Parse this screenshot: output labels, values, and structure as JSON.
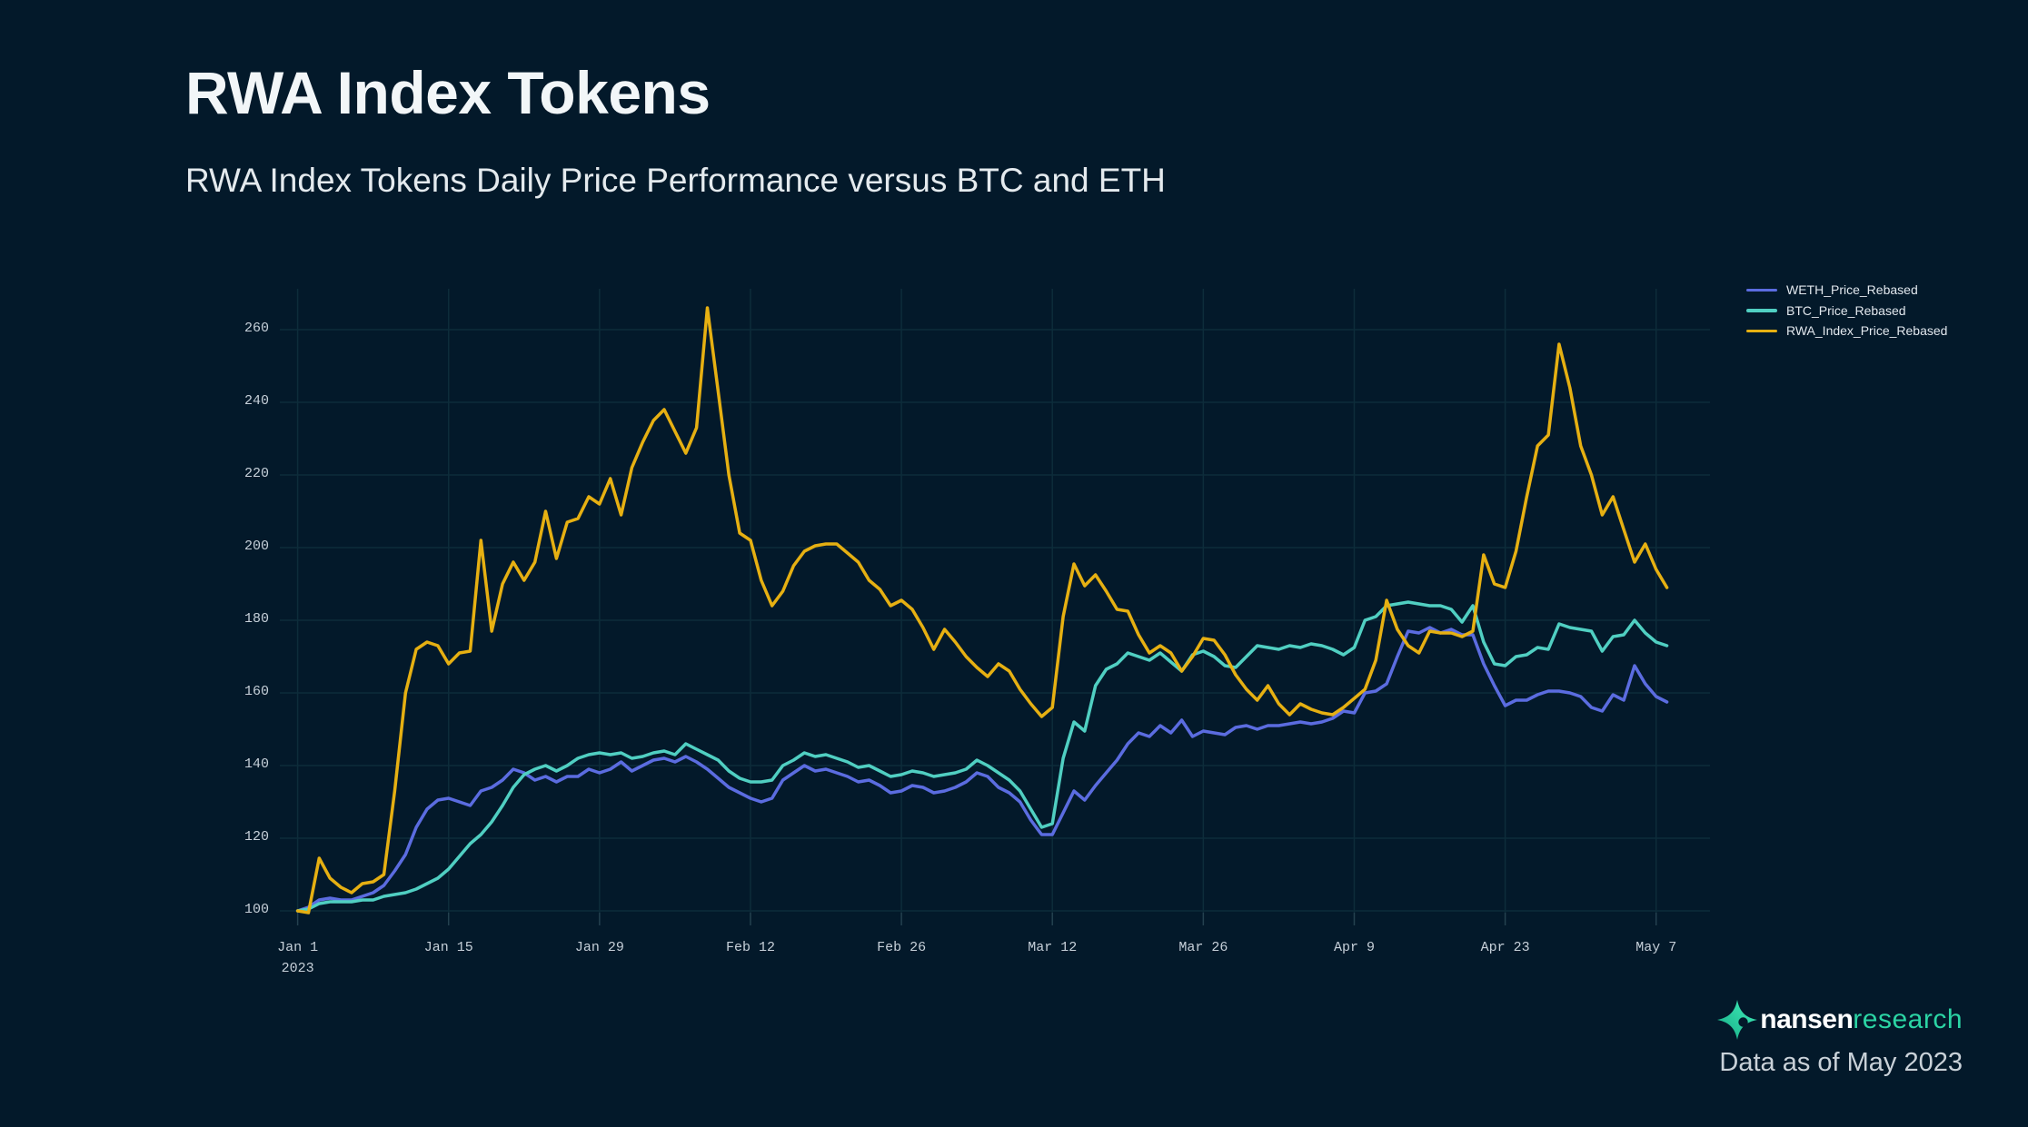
{
  "header": {
    "title": "RWA Index Tokens",
    "subtitle": "RWA Index Tokens Daily Price Performance versus BTC and ETH"
  },
  "legend": {
    "items": [
      {
        "label": "WETH_Price_Rebased",
        "color": "#5b6ce0"
      },
      {
        "label": "BTC_Price_Rebased",
        "color": "#50cfc2"
      },
      {
        "label": "RWA_Index_Price_Rebased",
        "color": "#e6b012"
      }
    ]
  },
  "footer": {
    "brand_bold": "nansen",
    "brand_light": "research",
    "brand_color": "#2bd4a4",
    "data_as_of": "Data as of May 2023"
  },
  "chart_data": {
    "type": "line",
    "title": "RWA Index Tokens",
    "subtitle": "RWA Index Tokens Daily Price Performance versus BTC and ETH",
    "xlabel": "",
    "ylabel": "",
    "start_date": "Jan 1 2023",
    "frequency": "daily",
    "num_points": 128,
    "ylim": [
      96,
      268
    ],
    "grid": true,
    "legend_position": "top-right",
    "y_ticks": [
      100,
      120,
      140,
      160,
      180,
      200,
      220,
      240,
      260
    ],
    "x_tick_days": [
      0,
      14,
      28,
      42,
      56,
      70,
      84,
      98,
      112,
      126
    ],
    "x_tick_labels": [
      "Jan 1\n2023",
      "Jan 15",
      "Jan 29",
      "Feb 12",
      "Feb 26",
      "Mar 12",
      "Mar 26",
      "Apr 9",
      "Apr 23",
      "May 7"
    ],
    "series": [
      {
        "name": "WETH_Price_Rebased",
        "color": "#5b6ce0",
        "values": [
          100,
          101,
          103,
          103.5,
          103,
          103,
          104,
          105,
          107,
          111,
          115.5,
          123,
          128,
          130.5,
          131,
          130,
          129,
          133,
          134,
          136,
          139,
          138,
          136,
          137,
          135.5,
          137,
          137,
          139,
          138,
          139,
          141,
          138.5,
          140,
          141.5,
          142,
          141,
          142.5,
          141,
          139,
          136.5,
          134,
          132.5,
          131,
          130,
          131,
          136,
          138,
          140,
          138.5,
          139,
          138,
          137,
          135.5,
          136,
          134.5,
          132.5,
          133,
          134.5,
          134,
          132.5,
          133,
          134,
          135.5,
          138,
          137,
          134,
          132.5,
          130,
          125,
          121,
          121,
          127,
          133,
          130.5,
          134.5,
          138,
          141.5,
          146,
          149,
          148,
          151,
          149,
          152.5,
          148,
          149.5,
          149,
          148.5,
          150.5,
          151,
          150,
          151,
          151,
          151.5,
          152,
          151.5,
          152,
          153,
          155,
          154.5,
          160,
          160.5,
          162.5,
          170,
          177,
          176.5,
          178,
          176.5,
          177.5,
          176,
          176,
          168,
          162,
          156.5,
          158,
          158,
          159.5,
          160.5,
          160.5,
          160,
          159,
          156,
          155,
          159.5,
          158,
          167.5,
          162.5,
          159,
          157.5
        ]
      },
      {
        "name": "BTC_Price_Rebased",
        "color": "#50cfc2",
        "values": [
          100,
          100.5,
          102,
          102.5,
          102.5,
          102.5,
          103,
          103,
          104,
          104.5,
          105,
          106,
          107.5,
          109,
          111.5,
          115,
          118.5,
          121,
          124.5,
          129,
          134,
          137.5,
          139,
          140,
          138.5,
          140,
          142,
          143,
          143.5,
          143,
          143.5,
          142,
          142.5,
          143.5,
          144,
          143,
          146,
          144.5,
          143,
          141.5,
          138.5,
          136.5,
          135.5,
          135.5,
          136,
          140,
          141.5,
          143.5,
          142.5,
          143,
          142,
          141,
          139.5,
          140,
          138.5,
          137,
          137.5,
          138.5,
          138,
          137,
          137.5,
          138,
          139,
          141.5,
          140,
          138,
          136,
          133,
          128,
          123,
          124,
          142,
          152,
          149.5,
          162,
          166.5,
          168,
          171,
          170,
          169,
          171,
          168.5,
          166,
          170.5,
          171.5,
          170,
          167.5,
          167,
          170,
          173,
          172.5,
          172,
          173,
          172.5,
          173.5,
          173,
          172,
          170.5,
          172.5,
          180,
          181,
          184,
          184.5,
          185,
          184.5,
          184,
          184,
          183,
          179.5,
          184,
          174,
          168,
          167.5,
          170,
          170.5,
          172.5,
          172,
          179,
          178,
          177.5,
          177,
          171.5,
          175.5,
          176,
          180,
          176.5,
          174,
          173
        ]
      },
      {
        "name": "RWA_Index_Price_Rebased",
        "color": "#e6b012",
        "values": [
          100,
          99.5,
          114.5,
          109,
          106.5,
          105,
          107.5,
          108,
          110,
          133,
          160,
          172,
          174,
          173,
          168,
          171,
          171.5,
          202,
          177,
          190,
          196,
          191,
          196,
          210,
          197,
          207,
          208,
          214,
          212,
          219,
          209,
          222,
          229,
          235,
          238,
          232,
          226,
          233,
          266,
          243,
          220,
          204,
          202,
          191,
          184,
          188,
          195,
          199,
          200.5,
          201,
          201,
          198.5,
          196,
          191,
          188.5,
          184,
          185.5,
          183,
          178,
          172,
          177.5,
          174,
          170,
          167,
          164.5,
          168,
          166,
          161,
          157,
          153.5,
          156,
          181,
          195.5,
          189.5,
          192.5,
          188,
          183,
          182.5,
          176,
          171,
          173,
          171,
          166,
          170,
          175,
          174.5,
          170.5,
          165,
          161,
          158,
          162,
          157,
          154,
          157,
          155.5,
          154.5,
          154,
          156,
          158.5,
          161,
          169,
          185.5,
          177.5,
          173,
          171,
          177,
          176.5,
          176.5,
          175.5,
          177,
          198,
          190,
          189,
          199,
          214,
          228,
          231,
          256,
          244,
          228,
          220,
          209,
          214,
          205,
          196,
          201,
          194,
          189
        ]
      }
    ]
  }
}
